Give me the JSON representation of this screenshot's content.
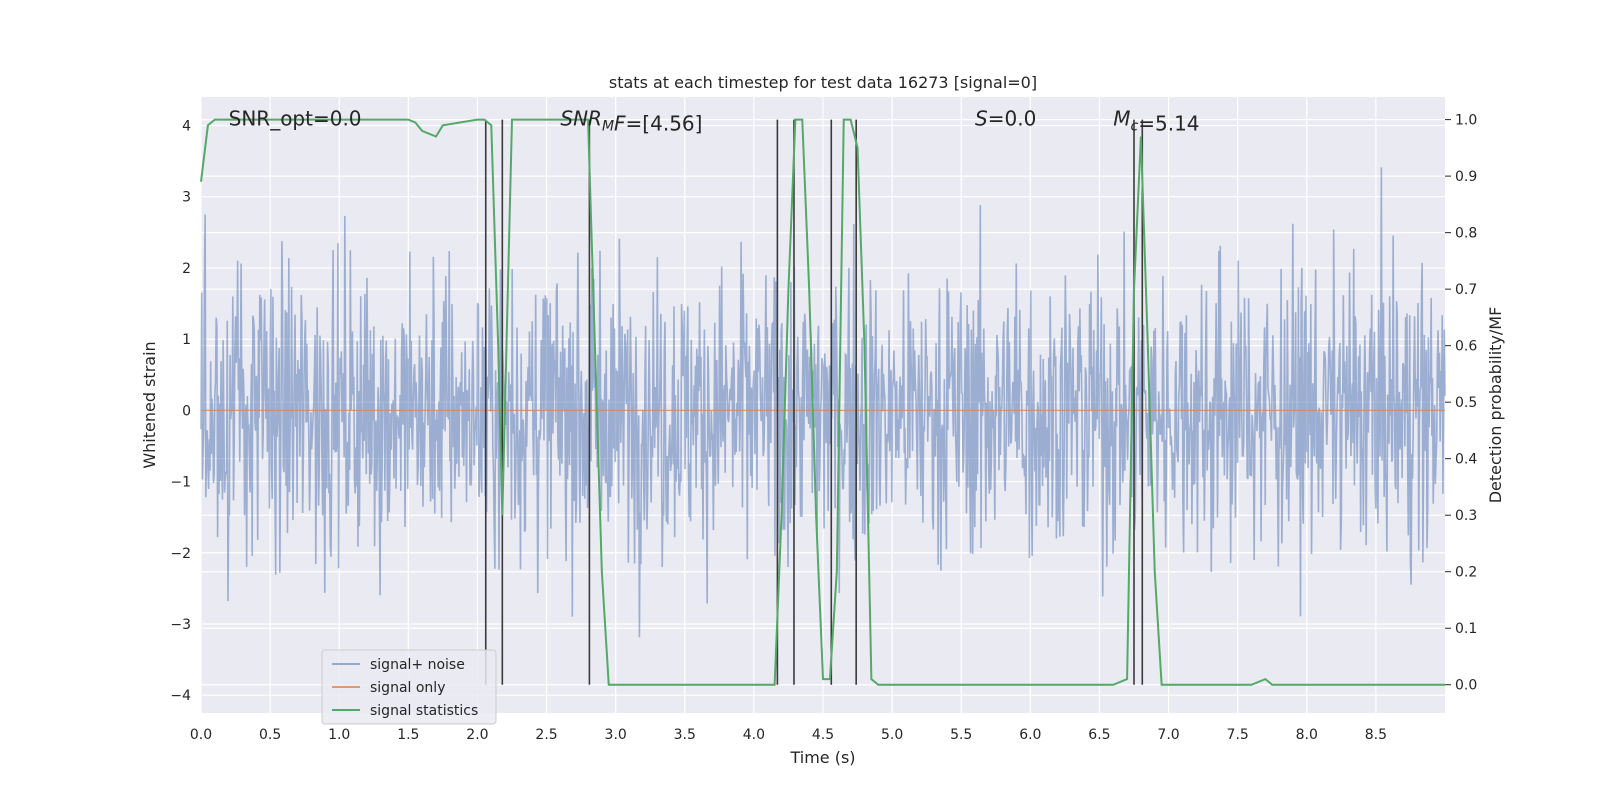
{
  "chart_data": {
    "type": "line",
    "title": "stats at each timestep for test data 16273 [signal=0]",
    "xlabel": "Time (s)",
    "ylabel": "Whitened strain",
    "ylabel_right": "Detection probability/MF",
    "xlim": [
      0,
      9.0
    ],
    "ylim": [
      -4.25,
      4.4
    ],
    "ylim_right": [
      -0.05,
      1.04
    ],
    "x_ticks": [
      "0.0",
      "0.5",
      "1.0",
      "1.5",
      "2.0",
      "2.5",
      "3.0",
      "3.5",
      "4.0",
      "4.5",
      "5.0",
      "5.5",
      "6.0",
      "6.5",
      "7.0",
      "7.5",
      "8.0",
      "8.5"
    ],
    "x_tick_values": [
      0,
      0.5,
      1.0,
      1.5,
      2.0,
      2.5,
      3.0,
      3.5,
      4.0,
      4.5,
      5.0,
      5.5,
      6.0,
      6.5,
      7.0,
      7.5,
      8.0,
      8.5
    ],
    "y_ticks": [
      "4",
      "3",
      "2",
      "1",
      "0",
      "−1",
      "−2",
      "−3",
      "−4"
    ],
    "y_tick_values": [
      4,
      3,
      2,
      1,
      0,
      -1,
      -2,
      -3,
      -4
    ],
    "y_right_ticks": [
      "1.0",
      "0.9",
      "0.8",
      "0.7",
      "0.6",
      "0.5",
      "0.4",
      "0.3",
      "0.2",
      "0.1",
      "0.0"
    ],
    "y_right_tick_values": [
      1.0,
      0.9,
      0.8,
      0.7,
      0.6,
      0.5,
      0.4,
      0.3,
      0.2,
      0.1,
      0.0
    ],
    "grid": true,
    "legend_position": "lower-left",
    "annotations": [
      {
        "parts": [
          {
            "t": "SNR_opt=0.0",
            "i": false
          }
        ],
        "x": 0.2,
        "y": 4.1
      },
      {
        "parts": [
          {
            "t": "SNR",
            "i": true
          },
          {
            "t": "M",
            "i": true,
            "sub": true
          },
          {
            "t": "F",
            "i": true
          },
          {
            "t": "=[4.56]",
            "i": false
          }
        ],
        "x": 2.6,
        "y": 4.1
      },
      {
        "parts": [
          {
            "t": "S",
            "i": true
          },
          {
            "t": "=0.0",
            "i": false
          }
        ],
        "x": 5.6,
        "y": 4.1
      },
      {
        "parts": [
          {
            "t": "M",
            "i": true
          },
          {
            "t": "c",
            "i": true,
            "sub": true
          },
          {
            "t": "=5.14",
            "i": false
          }
        ],
        "x": 6.6,
        "y": 4.1
      }
    ],
    "series": [
      {
        "name": "signal+ noise",
        "color": "#4c72b0",
        "opacity": 0.5,
        "kind": "noise",
        "amplitude_typical": 2.0,
        "amplitude_peak": 3.6
      },
      {
        "name": "signal only",
        "color": "#dd8452",
        "values_constant": 0.0
      },
      {
        "name": "signal statistics",
        "color": "#55a868",
        "axis": "right",
        "x": [
          0.0,
          0.05,
          0.1,
          0.5,
          1.0,
          1.5,
          1.55,
          1.6,
          1.7,
          1.75,
          2.0,
          2.05,
          2.1,
          2.15,
          2.18,
          2.2,
          2.25,
          2.5,
          2.75,
          2.8,
          2.85,
          2.9,
          2.95,
          3.0,
          3.5,
          4.0,
          4.1,
          4.15,
          4.2,
          4.25,
          4.3,
          4.35,
          4.4,
          4.45,
          4.5,
          4.55,
          4.6,
          4.65,
          4.7,
          4.75,
          4.8,
          4.85,
          4.9,
          5.0,
          5.5,
          6.0,
          6.5,
          6.6,
          6.7,
          6.75,
          6.8,
          6.85,
          6.9,
          6.95,
          7.0,
          7.5,
          7.6,
          7.65,
          7.7,
          7.75,
          8.0,
          8.5,
          9.0
        ],
        "values": [
          0.89,
          0.99,
          1.0,
          1.0,
          1.0,
          1.0,
          0.995,
          0.98,
          0.97,
          0.99,
          1.0,
          1.0,
          0.99,
          0.6,
          0.3,
          0.5,
          1.0,
          1.0,
          1.0,
          1.0,
          0.6,
          0.2,
          0.0,
          0.0,
          0.0,
          0.0,
          0.0,
          0.0,
          0.3,
          0.7,
          1.0,
          1.0,
          0.7,
          0.3,
          0.01,
          0.01,
          0.2,
          1.0,
          1.0,
          0.95,
          0.6,
          0.01,
          0.0,
          0.0,
          0.0,
          0.0,
          0.0,
          0.0,
          0.01,
          0.7,
          0.97,
          0.6,
          0.2,
          0.0,
          0.0,
          0.0,
          0.0,
          0.005,
          0.01,
          0.0,
          0.0,
          0.0,
          0.0
        ]
      },
      {
        "name": "",
        "color": "#3a3a3a",
        "kind": "vlines",
        "axis": "right",
        "x": [
          2.06,
          2.18,
          2.81,
          4.17,
          4.29,
          4.56,
          4.74,
          6.75,
          6.81
        ],
        "ymin": 0.0,
        "ymax": 1.0
      }
    ]
  },
  "legend": {
    "items": [
      {
        "label": "signal+ noise",
        "color": "#4c72b0",
        "opacity": 0.55
      },
      {
        "label": "signal only",
        "color": "#dd8452",
        "opacity": 0.8
      },
      {
        "label": "signal statistics",
        "color": "#55a868",
        "opacity": 1.0
      }
    ]
  }
}
